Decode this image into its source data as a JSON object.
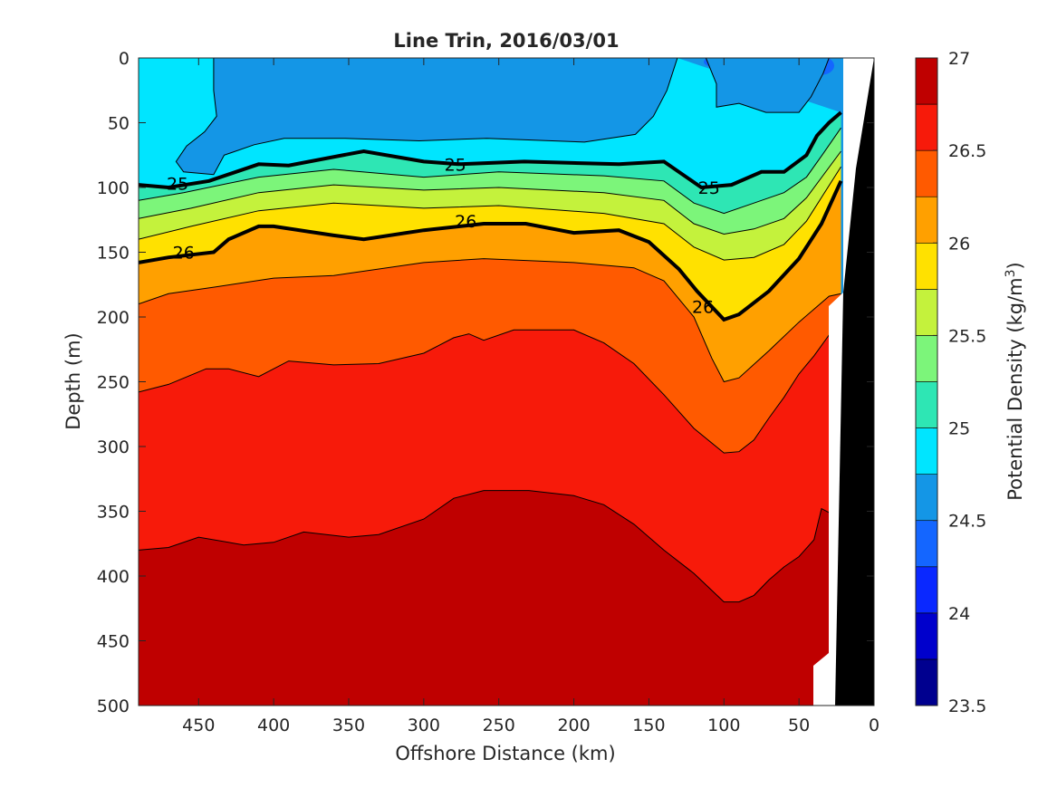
{
  "chart_data": {
    "type": "heatmap",
    "subtype": "filled-contour",
    "title": "Line Trin, 2016/03/01",
    "xlabel": "Offshore Distance (km)",
    "ylabel": "Depth (m)",
    "xlim": [
      490,
      0
    ],
    "ylim": [
      0,
      500
    ],
    "x_ticks": [
      "450",
      "400",
      "350",
      "300",
      "250",
      "200",
      "150",
      "100",
      "50",
      "0"
    ],
    "y_ticks": [
      "0",
      "50",
      "100",
      "150",
      "200",
      "250",
      "300",
      "350",
      "400",
      "450",
      "500"
    ],
    "y_reversed": true,
    "grid": false,
    "colorbar": {
      "label_main": "Potential Density (kg/m",
      "label_sup": "3",
      "label_end": ")",
      "range": [
        23.5,
        27
      ],
      "tick_labels": [
        "23.5",
        "24",
        "24.5",
        "25",
        "25.5",
        "26",
        "26.5",
        "27"
      ],
      "levels": [
        23.5,
        23.75,
        24.0,
        24.25,
        24.5,
        24.75,
        25.0,
        25.25,
        25.5,
        25.75,
        26.0,
        26.25,
        26.5,
        26.75,
        27.0
      ],
      "colors": [
        "#00008F",
        "#0000CC",
        "#0A28FF",
        "#1466FF",
        "#1496E6",
        "#00E5FF",
        "#2EE6B4",
        "#7CF57A",
        "#C4F23C",
        "#FFE100",
        "#FFA000",
        "#FF5A00",
        "#F71A0A",
        "#BF0000"
      ]
    },
    "contour_labels": [
      {
        "value": "25",
        "x": 464,
        "y": 97
      },
      {
        "value": "25",
        "x": 279,
        "y": 82
      },
      {
        "value": "25",
        "x": 110,
        "y": 100
      },
      {
        "value": "26",
        "x": 460,
        "y": 150
      },
      {
        "value": "26",
        "x": 272,
        "y": 126
      },
      {
        "value": "26",
        "x": 114,
        "y": 192
      }
    ],
    "isopycnals": [
      {
        "level": 24.75,
        "bold": false,
        "points": [
          [
            440,
            0
          ],
          [
            440,
            25
          ],
          [
            438,
            45
          ],
          [
            446,
            57
          ],
          [
            458,
            68
          ],
          [
            465,
            80
          ],
          [
            460,
            88
          ],
          [
            440,
            90
          ],
          [
            433,
            75
          ],
          [
            413,
            67
          ],
          [
            393,
            62
          ],
          [
            353,
            62
          ],
          [
            303,
            64
          ],
          [
            258,
            62
          ],
          [
            193,
            65
          ],
          [
            159,
            59
          ],
          [
            147,
            45
          ],
          [
            138,
            25
          ],
          [
            131,
            0
          ]
        ]
      },
      {
        "level": 24.5,
        "bold": false,
        "points": [
          [
            112,
            0
          ],
          [
            105,
            20
          ],
          [
            105,
            38
          ],
          [
            90,
            35
          ],
          [
            72,
            42
          ],
          [
            50,
            42
          ],
          [
            42,
            30
          ],
          [
            34,
            12
          ],
          [
            30,
            0
          ]
        ]
      },
      {
        "level": 25.0,
        "bold": true,
        "points": [
          [
            490,
            98
          ],
          [
            470,
            100
          ],
          [
            443,
            95
          ],
          [
            410,
            82
          ],
          [
            390,
            83
          ],
          [
            340,
            72
          ],
          [
            300,
            80
          ],
          [
            277,
            82
          ],
          [
            233,
            80
          ],
          [
            170,
            82
          ],
          [
            140,
            80
          ],
          [
            115,
            100
          ],
          [
            95,
            98
          ],
          [
            75,
            88
          ],
          [
            60,
            88
          ],
          [
            45,
            75
          ],
          [
            38,
            60
          ],
          [
            30,
            50
          ],
          [
            22,
            42
          ]
        ]
      },
      {
        "level": 25.25,
        "bold": false,
        "points": [
          [
            490,
            110
          ],
          [
            460,
            104
          ],
          [
            410,
            92
          ],
          [
            360,
            86
          ],
          [
            300,
            92
          ],
          [
            250,
            88
          ],
          [
            180,
            91
          ],
          [
            140,
            95
          ],
          [
            120,
            112
          ],
          [
            100,
            120
          ],
          [
            80,
            112
          ],
          [
            60,
            104
          ],
          [
            45,
            92
          ],
          [
            34,
            74
          ],
          [
            22,
            54
          ]
        ]
      },
      {
        "level": 25.5,
        "bold": false,
        "points": [
          [
            490,
            124
          ],
          [
            455,
            116
          ],
          [
            410,
            104
          ],
          [
            360,
            98
          ],
          [
            300,
            102
          ],
          [
            250,
            100
          ],
          [
            180,
            104
          ],
          [
            140,
            110
          ],
          [
            120,
            128
          ],
          [
            100,
            136
          ],
          [
            80,
            132
          ],
          [
            60,
            124
          ],
          [
            45,
            108
          ],
          [
            22,
            72
          ]
        ]
      },
      {
        "level": 25.75,
        "bold": false,
        "points": [
          [
            490,
            140
          ],
          [
            455,
            130
          ],
          [
            410,
            118
          ],
          [
            360,
            112
          ],
          [
            300,
            116
          ],
          [
            250,
            114
          ],
          [
            180,
            120
          ],
          [
            140,
            128
          ],
          [
            120,
            146
          ],
          [
            100,
            156
          ],
          [
            80,
            154
          ],
          [
            60,
            144
          ],
          [
            45,
            126
          ],
          [
            22,
            84
          ]
        ]
      },
      {
        "level": 26.0,
        "bold": true,
        "points": [
          [
            490,
            158
          ],
          [
            470,
            154
          ],
          [
            440,
            150
          ],
          [
            430,
            140
          ],
          [
            410,
            130
          ],
          [
            400,
            130
          ],
          [
            360,
            137
          ],
          [
            340,
            140
          ],
          [
            300,
            133
          ],
          [
            260,
            128
          ],
          [
            232,
            128
          ],
          [
            200,
            135
          ],
          [
            170,
            133
          ],
          [
            150,
            142
          ],
          [
            130,
            163
          ],
          [
            118,
            180
          ],
          [
            100,
            202
          ],
          [
            90,
            198
          ],
          [
            70,
            180
          ],
          [
            50,
            155
          ],
          [
            35,
            128
          ],
          [
            22,
            95
          ]
        ]
      },
      {
        "level": 26.25,
        "bold": false,
        "points": [
          [
            490,
            190
          ],
          [
            470,
            182
          ],
          [
            440,
            177
          ],
          [
            400,
            170
          ],
          [
            360,
            168
          ],
          [
            300,
            158
          ],
          [
            260,
            155
          ],
          [
            200,
            158
          ],
          [
            160,
            162
          ],
          [
            140,
            172
          ],
          [
            120,
            200
          ],
          [
            108,
            232
          ],
          [
            100,
            250
          ],
          [
            90,
            247
          ],
          [
            70,
            226
          ],
          [
            50,
            204
          ],
          [
            30,
            184
          ],
          [
            22,
            182
          ]
        ]
      },
      {
        "level": 26.5,
        "bold": false,
        "points": [
          [
            490,
            258
          ],
          [
            470,
            252
          ],
          [
            445,
            240
          ],
          [
            430,
            240
          ],
          [
            410,
            246
          ],
          [
            390,
            234
          ],
          [
            360,
            237
          ],
          [
            330,
            236
          ],
          [
            300,
            228
          ],
          [
            280,
            216
          ],
          [
            270,
            213
          ],
          [
            260,
            218
          ],
          [
            240,
            210
          ],
          [
            200,
            210
          ],
          [
            180,
            220
          ],
          [
            160,
            236
          ],
          [
            140,
            260
          ],
          [
            120,
            286
          ],
          [
            100,
            305
          ],
          [
            90,
            304
          ],
          [
            80,
            295
          ],
          [
            70,
            278
          ],
          [
            60,
            262
          ],
          [
            50,
            244
          ],
          [
            40,
            230
          ],
          [
            30,
            214
          ],
          [
            22,
            212
          ]
        ]
      },
      {
        "level": 26.75,
        "bold": false,
        "points": [
          [
            490,
            380
          ],
          [
            470,
            378
          ],
          [
            450,
            370
          ],
          [
            420,
            376
          ],
          [
            400,
            374
          ],
          [
            380,
            366
          ],
          [
            350,
            370
          ],
          [
            330,
            368
          ],
          [
            300,
            356
          ],
          [
            280,
            340
          ],
          [
            260,
            334
          ],
          [
            230,
            334
          ],
          [
            200,
            338
          ],
          [
            180,
            345
          ],
          [
            160,
            360
          ],
          [
            140,
            380
          ],
          [
            120,
            398
          ],
          [
            100,
            420
          ],
          [
            90,
            420
          ],
          [
            80,
            415
          ],
          [
            70,
            403
          ],
          [
            60,
            393
          ],
          [
            50,
            385
          ],
          [
            40,
            372
          ],
          [
            35,
            348
          ],
          [
            25,
            354
          ]
        ]
      }
    ]
  }
}
